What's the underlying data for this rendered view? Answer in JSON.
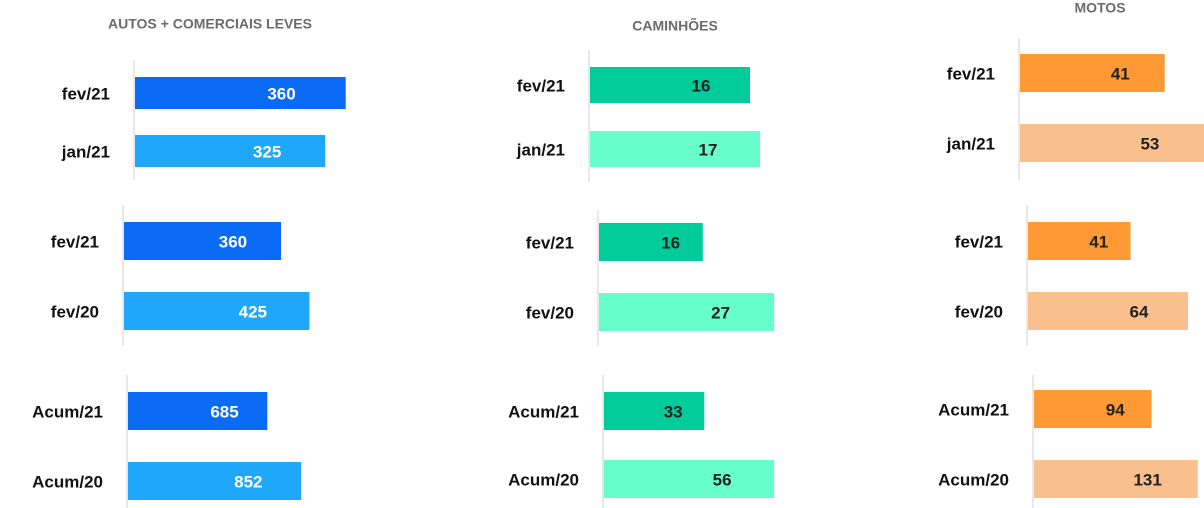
{
  "chart_data": [
    {
      "type": "bar",
      "title": "AUTOS + COMERCIAIS LEVES",
      "categories": [
        "fev/21",
        "jan/21"
      ],
      "values": [
        360,
        325
      ],
      "colors": [
        "#0a6cf5",
        "#1ea7fb"
      ],
      "label_colors": [
        "#ffffff",
        "#ffffff"
      ],
      "xlim": [
        0,
        410
      ]
    },
    {
      "type": "bar",
      "categories": [
        "fev/21",
        "fev/20"
      ],
      "values": [
        360,
        425
      ],
      "colors": [
        "#0a6cf5",
        "#1ea7fb"
      ],
      "label_colors": [
        "#ffffff",
        "#ffffff"
      ],
      "xlim": [
        0,
        550
      ]
    },
    {
      "type": "bar",
      "categories": [
        "Acum/21",
        "Acum/20"
      ],
      "values": [
        685,
        852
      ],
      "colors": [
        "#0a6cf5",
        "#1ea7fb"
      ],
      "label_colors": [
        "#ffffff",
        "#ffffff"
      ],
      "xlim": [
        0,
        1180
      ]
    },
    {
      "type": "bar",
      "title": "CAMINHÕES",
      "categories": [
        "fev/21",
        "jan/21"
      ],
      "values": [
        16,
        17
      ],
      "colors": [
        "#00cc99",
        "#66ffcc"
      ],
      "label_colors": [
        "#222222",
        "#222222"
      ],
      "xlim": [
        0,
        24
      ]
    },
    {
      "type": "bar",
      "categories": [
        "fev/21",
        "fev/20"
      ],
      "values": [
        16,
        27
      ],
      "colors": [
        "#00cc99",
        "#66ffcc"
      ],
      "label_colors": [
        "#222222",
        "#222222"
      ],
      "xlim": [
        0,
        37
      ]
    },
    {
      "type": "bar",
      "categories": [
        "Acum/21",
        "Acum/20"
      ],
      "values": [
        33,
        56
      ],
      "colors": [
        "#00cc99",
        "#66ffcc"
      ],
      "label_colors": [
        "#222222",
        "#222222"
      ],
      "xlim": [
        0,
        79
      ]
    },
    {
      "type": "bar",
      "title": "MOTOS",
      "categories": [
        "fev/21",
        "jan/21"
      ],
      "values": [
        41,
        53
      ],
      "colors": [
        "#ff9933",
        "#f9c08e"
      ],
      "label_colors": [
        "#222222",
        "#222222"
      ],
      "xlim": [
        0,
        68
      ]
    },
    {
      "type": "bar",
      "categories": [
        "fev/21",
        "fev/20"
      ],
      "values": [
        41,
        64
      ],
      "colors": [
        "#ff9933",
        "#f9c08e"
      ],
      "label_colors": [
        "#222222",
        "#222222"
      ],
      "xlim": [
        0,
        96
      ]
    },
    {
      "type": "bar",
      "categories": [
        "Acum/21",
        "Acum/20"
      ],
      "values": [
        94,
        131
      ],
      "colors": [
        "#ff9933",
        "#f9c08e"
      ],
      "label_colors": [
        "#222222",
        "#222222"
      ],
      "xlim": [
        0,
        192
      ]
    }
  ]
}
